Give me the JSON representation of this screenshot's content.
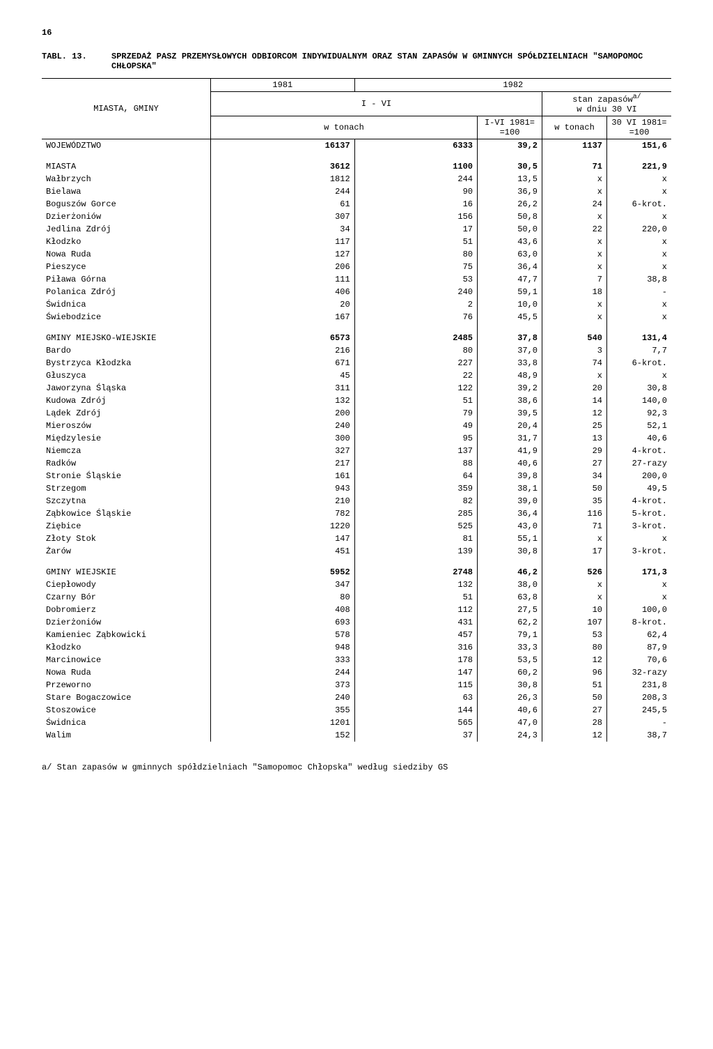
{
  "page_number": "16",
  "table_label": "TABL. 13.",
  "table_title": "SPRZEDAŻ PASZ PRZEMYSŁOWYCH ODBIORCOM INDYWIDUALNYM ORAZ STAN ZAPASÓW W GMINNYCH SPÓŁDZIELNIACH \"SAMOPOMOC CHŁOPSKA\"",
  "header": {
    "col_region": "MIASTA, GMINY",
    "year1": "1981",
    "year2": "1982",
    "period": "I - VI",
    "stock": "stan zapasów",
    "stock_sup": "a/",
    "stock_sub": "w dniu 30 VI",
    "unit": "w tonach",
    "idx1": "I-VI 1981= =100",
    "unit2": "w tonach",
    "idx2": "30 VI 1981= =100"
  },
  "sections": [
    {
      "label": "WOJEWÓDZTWO",
      "row": [
        "16137",
        "6333",
        "39,2",
        "1137",
        "151,6"
      ]
    },
    {
      "label": "MIASTA",
      "row": [
        "3612",
        "1100",
        "30,5",
        "71",
        "221,9"
      ],
      "items": [
        [
          "Wałbrzych",
          "1812",
          "244",
          "13,5",
          "x",
          "x"
        ],
        [
          "Bielawa",
          "244",
          "90",
          "36,9",
          "x",
          "x"
        ],
        [
          "Boguszów Gorce",
          "61",
          "16",
          "26,2",
          "24",
          "6-krot."
        ],
        [
          "Dzierżoniów",
          "307",
          "156",
          "50,8",
          "x",
          "x"
        ],
        [
          "Jedlina Zdrój",
          "34",
          "17",
          "50,0",
          "22",
          "220,0"
        ],
        [
          "Kłodzko",
          "117",
          "51",
          "43,6",
          "x",
          "x"
        ],
        [
          "Nowa Ruda",
          "127",
          "80",
          "63,0",
          "x",
          "x"
        ],
        [
          "Pieszyce",
          "206",
          "75",
          "36,4",
          "x",
          "x"
        ],
        [
          "Piława Górna",
          "111",
          "53",
          "47,7",
          "7",
          "38,8"
        ],
        [
          "Polanica Zdrój",
          "406",
          "240",
          "59,1",
          "18",
          "-"
        ],
        [
          "Świdnica",
          "20",
          "2",
          "10,0",
          "x",
          "x"
        ],
        [
          "Świebodzice",
          "167",
          "76",
          "45,5",
          "x",
          "x"
        ]
      ]
    },
    {
      "label": "GMINY MIEJSKO-WIEJSKIE",
      "row": [
        "6573",
        "2485",
        "37,8",
        "540",
        "131,4"
      ],
      "items": [
        [
          "Bardo",
          "216",
          "80",
          "37,0",
          "3",
          "7,7"
        ],
        [
          "Bystrzyca Kłodzka",
          "671",
          "227",
          "33,8",
          "74",
          "6-krot."
        ],
        [
          "Głuszyca",
          "45",
          "22",
          "48,9",
          "x",
          "x"
        ],
        [
          "Jaworzyna Śląska",
          "311",
          "122",
          "39,2",
          "20",
          "30,8"
        ],
        [
          "Kudowa Zdrój",
          "132",
          "51",
          "38,6",
          "14",
          "140,0"
        ],
        [
          "Lądek Zdrój",
          "200",
          "79",
          "39,5",
          "12",
          "92,3"
        ],
        [
          "Mieroszów",
          "240",
          "49",
          "20,4",
          "25",
          "52,1"
        ],
        [
          "Międzylesie",
          "300",
          "95",
          "31,7",
          "13",
          "40,6"
        ],
        [
          "Niemcza",
          "327",
          "137",
          "41,9",
          "29",
          "4-krot."
        ],
        [
          "Radków",
          "217",
          "88",
          "40,6",
          "27",
          "27-razy"
        ],
        [
          "Stronie Śląskie",
          "161",
          "64",
          "39,8",
          "34",
          "200,0"
        ],
        [
          "Strzegom",
          "943",
          "359",
          "38,1",
          "50",
          "49,5"
        ],
        [
          "Szczytna",
          "210",
          "82",
          "39,0",
          "35",
          "4-krot."
        ],
        [
          "Ząbkowice Śląskie",
          "782",
          "285",
          "36,4",
          "116",
          "5-krot."
        ],
        [
          "Ziębice",
          "1220",
          "525",
          "43,0",
          "71",
          "3-krot."
        ],
        [
          "Złoty Stok",
          "147",
          "81",
          "55,1",
          "x",
          "x"
        ],
        [
          "Żarów",
          "451",
          "139",
          "30,8",
          "17",
          "3-krot."
        ]
      ]
    },
    {
      "label": "GMINY WIEJSKIE",
      "row": [
        "5952",
        "2748",
        "46,2",
        "526",
        "171,3"
      ],
      "items": [
        [
          "Ciepłowody",
          "347",
          "132",
          "38,0",
          "x",
          "x"
        ],
        [
          "Czarny Bór",
          "80",
          "51",
          "63,8",
          "x",
          "x"
        ],
        [
          "Dobromierz",
          "408",
          "112",
          "27,5",
          "10",
          "100,0"
        ],
        [
          "Dzierżoniów",
          "693",
          "431",
          "62,2",
          "107",
          "8-krot."
        ],
        [
          "Kamieniec Ząbkowicki",
          "578",
          "457",
          "79,1",
          "53",
          "62,4"
        ],
        [
          "Kłodzko",
          "948",
          "316",
          "33,3",
          "80",
          "87,9"
        ],
        [
          "Marcinowice",
          "333",
          "178",
          "53,5",
          "12",
          "70,6"
        ],
        [
          "Nowa Ruda",
          "244",
          "147",
          "60,2",
          "96",
          "32-razy"
        ],
        [
          "Przeworno",
          "373",
          "115",
          "30,8",
          "51",
          "231,8"
        ],
        [
          "Stare Bogaczowice",
          "240",
          "63",
          "26,3",
          "50",
          "208,3"
        ],
        [
          "Stoszowice",
          "355",
          "144",
          "40,6",
          "27",
          "245,5"
        ],
        [
          "Świdnica",
          "1201",
          "565",
          "47,0",
          "28",
          "-"
        ],
        [
          "Walim",
          "152",
          "37",
          "24,3",
          "12",
          "38,7"
        ]
      ]
    }
  ],
  "footnote": "a/ Stan zapasów w gminnych spółdzielniach \"Samopomoc Chłopska\" według siedziby GS"
}
